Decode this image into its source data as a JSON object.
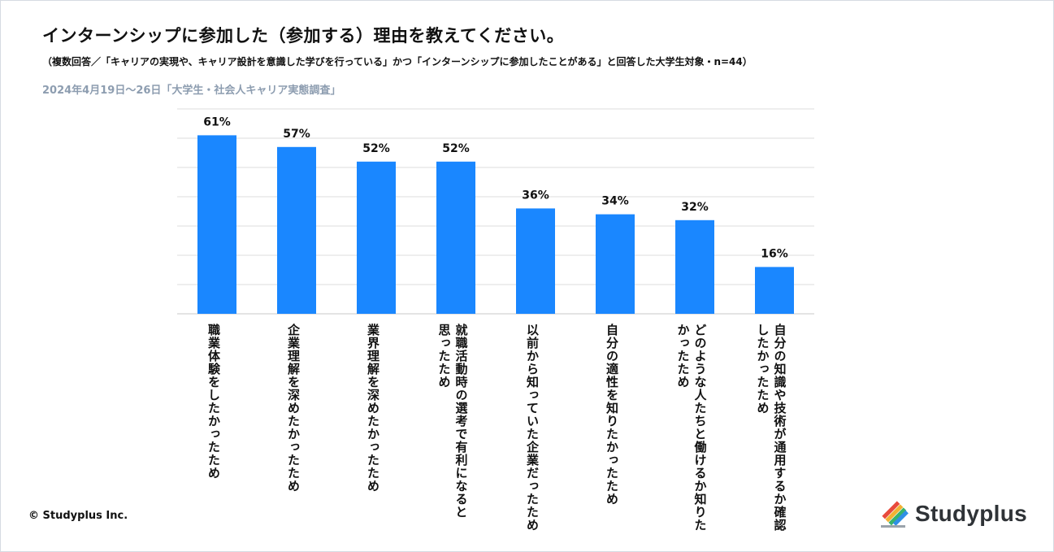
{
  "page": {
    "title": "インターンシップに参加した（参加する）理由を教えてください。",
    "subtitle": "（複数回答／「キャリアの実現や、キャリア設計を意識した学びを行っている」かつ「インターンシップに参加したことがある」と回答した大学生対象・n=44）",
    "survey_label": "2024年4月19日～26日「大学生・社会人キャリア実態調査」",
    "copyright": "© Studyplus Inc.",
    "brand": "Studyplus"
  },
  "colors": {
    "bar": "#1a87ff",
    "grid": "#dcdcdc",
    "survey_text": "#8d9db0"
  },
  "chart_data": {
    "type": "bar",
    "title": "インターンシップに参加した（参加する）理由を教えてください。",
    "xlabel": "",
    "ylabel": "",
    "ylim": [
      0,
      70
    ],
    "grid": true,
    "unit": "%",
    "categories": [
      "職業体験をしたかったため",
      "企業理解を深めたかったため",
      "業界理解を深めたかったため",
      "就職活動時の選考で有利になると思ったため",
      "以前から知っていた企業だったため",
      "自分の適性を知りたかったため",
      "どのような人たちと働けるか知りたかったため",
      "自分の知識や技術が通用するか確認したかったため"
    ],
    "category_lines": [
      [
        "職業体験をしたかったため"
      ],
      [
        "企業理解を深めたかったため"
      ],
      [
        "業界理解を深めたかったため"
      ],
      [
        "就職活動時の選考で有利になると",
        "思ったため"
      ],
      [
        "以前から知っていた企業だったため"
      ],
      [
        "自分の適性を知りたかったため"
      ],
      [
        "どのような人たちと働けるか知りた",
        "かったため"
      ],
      [
        "自分の知識や技術が通用するか確認",
        "したかったため"
      ]
    ],
    "values": [
      61,
      57,
      52,
      52,
      36,
      34,
      32,
      16
    ],
    "value_labels": [
      "61%",
      "57%",
      "52%",
      "52%",
      "36%",
      "34%",
      "32%",
      "16%"
    ]
  }
}
